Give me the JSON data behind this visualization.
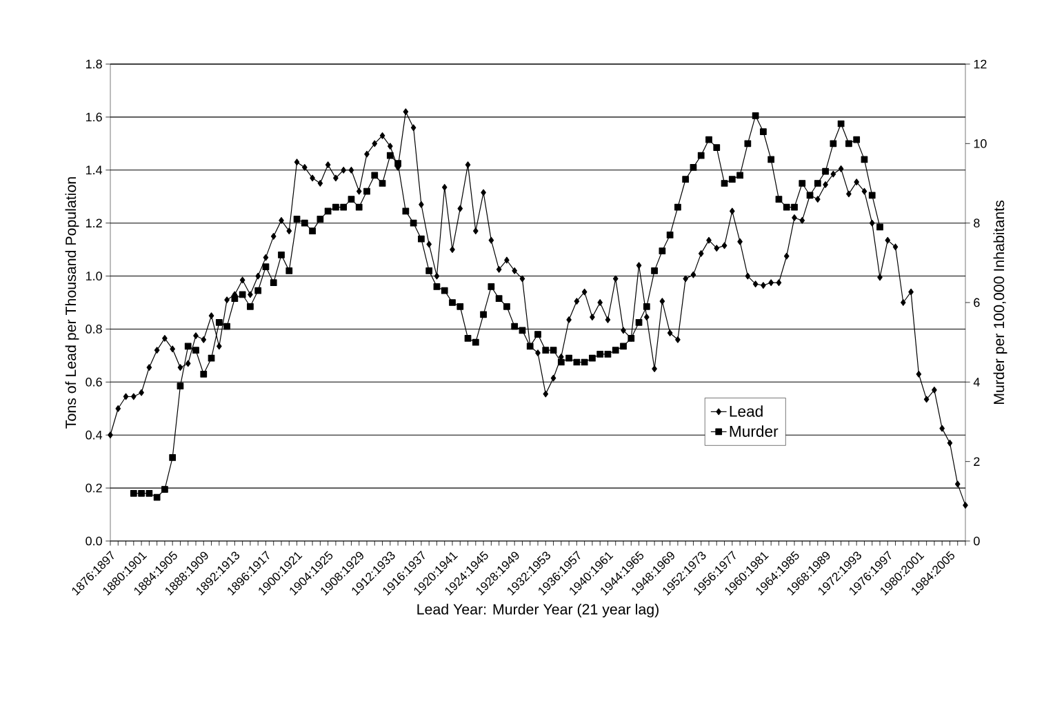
{
  "chart_data": {
    "type": "line",
    "xlabel": "Lead Year:  Murder Year (21 year lag)",
    "ylabel": "Tons of Lead per Thousand Population",
    "y2label": "Murder per 100,000 Inhabitants",
    "categories": [
      "1876:1897",
      null,
      null,
      null,
      "1880:1901",
      null,
      null,
      null,
      "1884:1905",
      null,
      null,
      null,
      "1888:1909",
      null,
      null,
      null,
      "1892:1913",
      null,
      null,
      null,
      "1896:1917",
      null,
      null,
      null,
      "1900:1921",
      null,
      null,
      null,
      "1904:1925",
      null,
      null,
      null,
      "1908:1929",
      null,
      null,
      null,
      "1912:1933",
      null,
      null,
      null,
      "1916:1937",
      null,
      null,
      null,
      "1920:1941",
      null,
      null,
      null,
      "1924:1945",
      null,
      null,
      null,
      "1928:1949",
      null,
      null,
      null,
      "1932:1953",
      null,
      null,
      null,
      "1936:1957",
      null,
      null,
      null,
      "1940:1961",
      null,
      null,
      null,
      "1944:1965",
      null,
      null,
      null,
      "1948:1969",
      null,
      null,
      null,
      "1952:1973",
      null,
      null,
      null,
      "1956:1977",
      null,
      null,
      null,
      "1960:1981",
      null,
      null,
      null,
      "1964:1985",
      null,
      null,
      null,
      "1968:1989",
      null,
      null,
      null,
      "1972:1993",
      null,
      null,
      null,
      "1976:1997",
      null,
      null,
      null,
      "1980:2001",
      null,
      null,
      null,
      "1984:2005",
      null,
      null
    ],
    "series": [
      {
        "name": "Lead",
        "color": "#000000",
        "marker": "diamond",
        "values": [
          0.4,
          0.5,
          0.545,
          0.545,
          0.56,
          0.655,
          0.72,
          0.765,
          0.725,
          0.655,
          0.67,
          0.775,
          0.76,
          0.85,
          0.735,
          0.91,
          0.93,
          0.985,
          0.93,
          1.0,
          1.07,
          1.15,
          1.21,
          1.17,
          1.43,
          1.41,
          1.37,
          1.35,
          1.42,
          1.37,
          1.4,
          1.4,
          1.32,
          1.46,
          1.5,
          1.53,
          1.49,
          1.41,
          1.62,
          1.56,
          1.27,
          1.12,
          1.0,
          1.335,
          1.1,
          1.255,
          1.42,
          1.17,
          1.315,
          1.135,
          1.025,
          1.06,
          1.02,
          0.99,
          0.735,
          0.71,
          0.555,
          0.615,
          0.695,
          0.835,
          0.905,
          0.94,
          0.845,
          0.9,
          0.835,
          0.99,
          0.795,
          0.765,
          1.04,
          0.845,
          0.65,
          0.905,
          0.785,
          0.76,
          0.99,
          1.005,
          1.085,
          1.135,
          1.105,
          1.115,
          1.245,
          1.13,
          1.0,
          0.97,
          0.965,
          0.975,
          0.975,
          1.075,
          1.22,
          1.21,
          1.305,
          1.29,
          1.345,
          1.385,
          1.405,
          1.31,
          1.355,
          1.32,
          1.2,
          0.995,
          1.135,
          1.11,
          0.9,
          0.94,
          0.63,
          0.535,
          0.57,
          0.425,
          0.37,
          0.215,
          0.135
        ]
      },
      {
        "name": "Murder",
        "color": "#000000",
        "marker": "square",
        "axis": "y2",
        "values": [
          null,
          null,
          null,
          1.2,
          1.2,
          1.2,
          1.1,
          1.3,
          2.1,
          3.9,
          4.9,
          4.8,
          4.2,
          4.6,
          5.5,
          5.4,
          6.1,
          6.2,
          5.9,
          6.3,
          6.9,
          6.5,
          7.2,
          6.8,
          8.1,
          8.0,
          7.8,
          8.1,
          8.3,
          8.4,
          8.4,
          8.6,
          8.4,
          8.8,
          9.2,
          9.0,
          9.7,
          9.5,
          8.3,
          8.0,
          7.6,
          6.8,
          6.4,
          6.3,
          6.0,
          5.9,
          5.1,
          5.0,
          5.7,
          6.4,
          6.1,
          5.9,
          5.4,
          5.3,
          4.9,
          5.2,
          4.8,
          4.8,
          4.5,
          4.6,
          4.5,
          4.5,
          4.6,
          4.7,
          4.7,
          4.8,
          4.9,
          5.1,
          5.5,
          5.9,
          6.8,
          7.3,
          7.7,
          8.4,
          9.1,
          9.4,
          9.7,
          10.1,
          9.9,
          9.0,
          9.1,
          9.2,
          10.0,
          10.7,
          10.3,
          9.6,
          8.6,
          8.4,
          8.4,
          9.0,
          8.7,
          9.0,
          9.3,
          10.0,
          10.5,
          10.0,
          10.1,
          9.6,
          8.7,
          7.9,
          null,
          null,
          null,
          null,
          null,
          null,
          null,
          null,
          null,
          null,
          null
        ]
      }
    ],
    "ylim": [
      0,
      1.8
    ],
    "yticks": [
      {
        "value": 0,
        "label": "0.0"
      },
      0.2,
      0.4,
      0.6,
      0.8,
      {
        "value": 1,
        "label": "1.0"
      },
      1.2,
      1.4,
      1.6,
      1.8
    ],
    "y2lim": [
      0,
      12
    ],
    "y2ticks": [
      0,
      2,
      4,
      6,
      8,
      10,
      12
    ],
    "grid": "y",
    "legend": "bottom right"
  }
}
